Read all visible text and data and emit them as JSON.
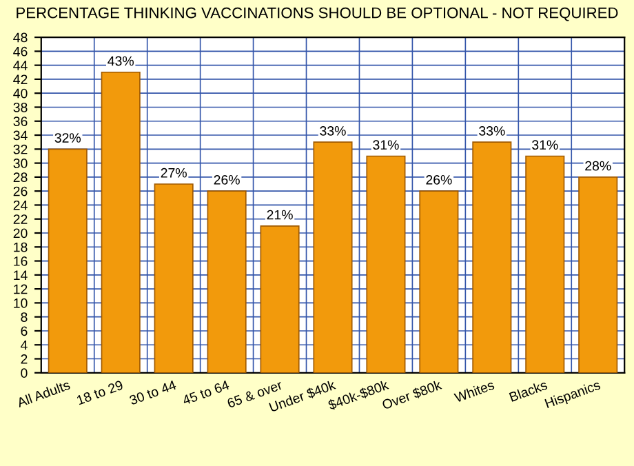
{
  "chart_data": {
    "type": "bar",
    "title": "PERCENTAGE THINKING VACCINATIONS SHOULD BE OPTIONAL - NOT REQUIRED",
    "categories": [
      "All Adults",
      "18 to 29",
      "30 to 44",
      "45 to 64",
      "65 & over",
      "Under $40k",
      "$40k-$80k",
      "Over $80k",
      "Whites",
      "Blacks",
      "Hispanics"
    ],
    "values": [
      32,
      43,
      27,
      26,
      21,
      33,
      31,
      26,
      33,
      31,
      28
    ],
    "value_labels": [
      "32%",
      "43%",
      "27%",
      "26%",
      "21%",
      "33%",
      "31%",
      "26%",
      "33%",
      "31%",
      "28%"
    ],
    "color": "#f29a0c",
    "ylim": [
      0,
      48
    ],
    "yticks": [
      0,
      2,
      4,
      6,
      8,
      10,
      12,
      14,
      16,
      18,
      20,
      22,
      24,
      26,
      28,
      30,
      32,
      34,
      36,
      38,
      40,
      42,
      44,
      46,
      48
    ],
    "grid": true
  }
}
